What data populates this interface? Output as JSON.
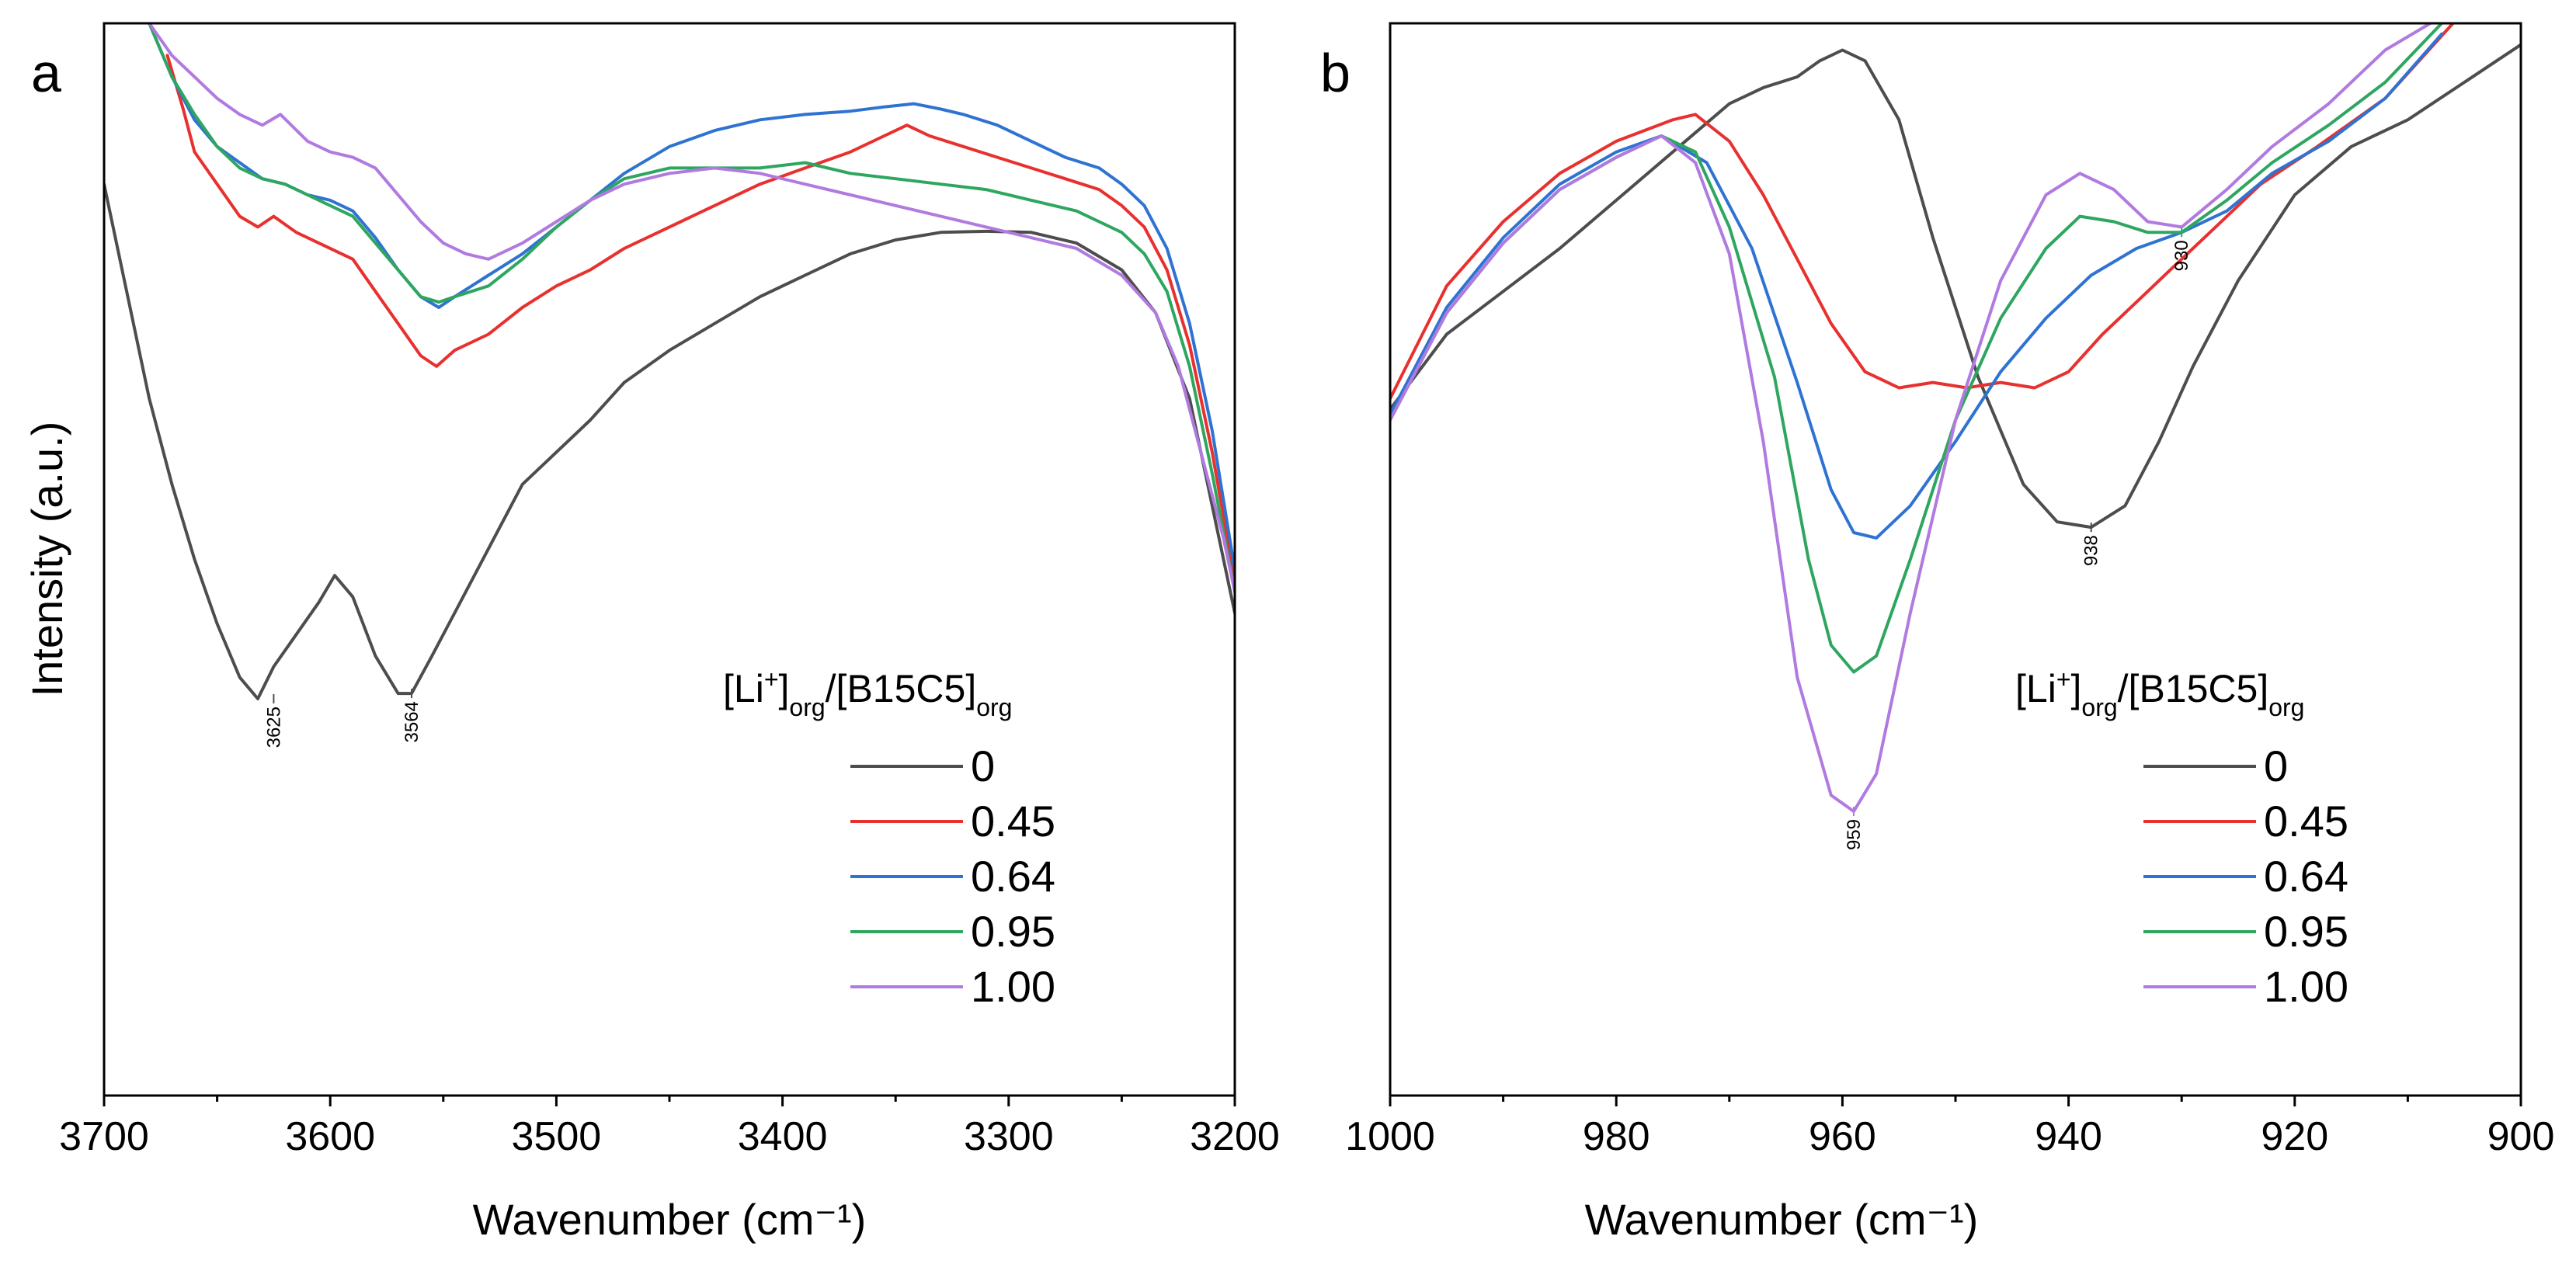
{
  "chart_data": [
    {
      "panel": "a",
      "type": "line",
      "xlabel": "Wavenumber (cm⁻¹)",
      "ylabel": "Intensity (a.u.)",
      "xlim": [
        3700,
        3200
      ],
      "ylim": [
        0,
        100
      ],
      "xticks": [
        "3700",
        "3600",
        "3500",
        "3400",
        "3300",
        "3200"
      ],
      "legend": {
        "title_parts": [
          "[Li",
          "+",
          "]",
          "org",
          "/[B15C5]",
          "org"
        ],
        "position": "lower-right"
      },
      "series": [
        {
          "name": "0",
          "color": "#4d4d4d",
          "x": [
            3700,
            3690,
            3680,
            3670,
            3660,
            3650,
            3640,
            3632,
            3625,
            3615,
            3605,
            3598,
            3590,
            3580,
            3570,
            3564,
            3555,
            3545,
            3530,
            3515,
            3500,
            3485,
            3470,
            3450,
            3430,
            3410,
            3390,
            3370,
            3350,
            3330,
            3310,
            3290,
            3270,
            3250,
            3235,
            3220,
            3210,
            3200
          ],
          "y": [
            85,
            75,
            65,
            57,
            50,
            44,
            39,
            37,
            40,
            43,
            46,
            48.5,
            46.5,
            41,
            37.5,
            37.5,
            41,
            45,
            51,
            57,
            60,
            63,
            66.5,
            69.5,
            72,
            74.5,
            76.5,
            78.5,
            79.8,
            80.5,
            80.6,
            80.5,
            79.5,
            77,
            73,
            65,
            55,
            45
          ]
        },
        {
          "name": "0.45",
          "color": "#e8312f",
          "x": [
            3672,
            3665,
            3660,
            3650,
            3640,
            3632,
            3625,
            3615,
            3605,
            3590,
            3580,
            3570,
            3560,
            3553,
            3545,
            3530,
            3515,
            3500,
            3485,
            3470,
            3450,
            3430,
            3410,
            3390,
            3370,
            3355,
            3345,
            3335,
            3320,
            3305,
            3290,
            3275,
            3260,
            3250,
            3240,
            3230,
            3220,
            3210,
            3200
          ],
          "y": [
            97,
            92,
            88,
            85,
            82,
            81,
            82,
            80.5,
            79.5,
            78,
            75,
            72,
            69,
            68,
            69.5,
            71,
            73.5,
            75.5,
            77,
            79,
            81,
            83,
            85,
            86.5,
            88,
            89.5,
            90.5,
            89.5,
            88.5,
            87.5,
            86.5,
            85.5,
            84.5,
            83,
            81,
            77,
            70,
            60,
            48
          ]
        },
        {
          "name": "0.64",
          "color": "#2f73d2",
          "x": [
            3680,
            3670,
            3660,
            3650,
            3640,
            3630,
            3620,
            3610,
            3600,
            3590,
            3580,
            3570,
            3560,
            3552,
            3545,
            3530,
            3515,
            3500,
            3485,
            3470,
            3450,
            3430,
            3410,
            3390,
            3370,
            3355,
            3342,
            3330,
            3320,
            3305,
            3290,
            3275,
            3260,
            3250,
            3240,
            3230,
            3220,
            3210,
            3200
          ],
          "y": [
            100,
            95,
            91,
            88.5,
            87,
            85.5,
            85,
            84,
            83.5,
            82.5,
            80,
            77,
            74.5,
            73.5,
            74.5,
            76.5,
            78.5,
            81,
            83.5,
            86,
            88.5,
            90,
            91,
            91.5,
            91.8,
            92.2,
            92.5,
            92,
            91.5,
            90.5,
            89,
            87.5,
            86.5,
            85,
            83,
            79,
            72,
            62,
            49
          ]
        },
        {
          "name": "0.95",
          "color": "#2fa660",
          "x": [
            3680,
            3670,
            3660,
            3650,
            3640,
            3630,
            3620,
            3610,
            3600,
            3590,
            3580,
            3570,
            3560,
            3552,
            3545,
            3530,
            3515,
            3500,
            3485,
            3470,
            3450,
            3430,
            3410,
            3390,
            3370,
            3350,
            3330,
            3310,
            3290,
            3270,
            3250,
            3240,
            3230,
            3220,
            3210,
            3200
          ],
          "y": [
            100,
            95,
            91.5,
            88.5,
            86.5,
            85.5,
            85,
            84,
            83,
            82,
            79.5,
            77,
            74.5,
            74,
            74.5,
            75.5,
            78,
            81,
            83.5,
            85.5,
            86.5,
            86.5,
            86.5,
            87,
            86,
            85.5,
            85,
            84.5,
            83.5,
            82.5,
            80.5,
            78.5,
            75,
            68,
            58,
            47
          ]
        },
        {
          "name": "1.00",
          "color": "#b07ae0",
          "x": [
            3680,
            3670,
            3660,
            3650,
            3640,
            3630,
            3622,
            3610,
            3600,
            3590,
            3580,
            3570,
            3560,
            3550,
            3540,
            3530,
            3515,
            3500,
            3485,
            3470,
            3450,
            3430,
            3410,
            3390,
            3370,
            3350,
            3330,
            3310,
            3290,
            3270,
            3250,
            3235,
            3225,
            3215,
            3205,
            3200
          ],
          "y": [
            100,
            97,
            95,
            93,
            91.5,
            90.5,
            91.5,
            89,
            88,
            87.5,
            86.5,
            84,
            81.5,
            79.5,
            78.5,
            78,
            79.5,
            81.5,
            83.5,
            85,
            86,
            86.5,
            86,
            85,
            84,
            83,
            82,
            81,
            80,
            79,
            76.5,
            73,
            68,
            60,
            52,
            47
          ]
        }
      ],
      "peak_labels": [
        {
          "label": "3625",
          "x": 3625,
          "y": 37
        },
        {
          "label": "3564",
          "x": 3564,
          "y": 37.5
        }
      ]
    },
    {
      "panel": "b",
      "type": "line",
      "xlabel": "Wavenumber (cm⁻¹)",
      "ylabel": "",
      "xlim": [
        1000,
        900
      ],
      "ylim": [
        0,
        100
      ],
      "xticks": [
        "1000",
        "980",
        "960",
        "940",
        "920",
        "900"
      ],
      "legend": {
        "title_parts": [
          "[Li",
          "+",
          "]",
          "org",
          "/[B15C5]",
          "org"
        ],
        "position": "lower-right"
      },
      "series": [
        {
          "name": "0",
          "color": "#4d4d4d",
          "x": [
            1000,
            995,
            990,
            985,
            980,
            975,
            970,
            967,
            964,
            962,
            960,
            958,
            955,
            952,
            948,
            944,
            941,
            938,
            935,
            932,
            929,
            925,
            920,
            915,
            910,
            905,
            900
          ],
          "y": [
            64,
            71,
            75,
            79,
            83.5,
            88,
            92.5,
            94,
            95,
            96.5,
            97.5,
            96.5,
            91,
            80,
            67,
            57,
            53.5,
            53,
            55,
            61,
            68,
            76,
            84,
            88.5,
            91,
            94.5,
            98
          ]
        },
        {
          "name": "0.45",
          "color": "#e8312f",
          "x": [
            1000,
            995,
            990,
            985,
            980,
            975,
            973,
            970,
            967,
            964,
            961,
            958,
            955,
            952,
            949,
            946,
            943,
            940,
            937,
            934,
            931,
            927,
            923,
            918,
            912,
            906
          ],
          "y": [
            65,
            75.5,
            81.5,
            86,
            89,
            91,
            91.5,
            89,
            84,
            78,
            72,
            67.5,
            66,
            66.5,
            66,
            66.5,
            66,
            67.5,
            71,
            74,
            77,
            81,
            85,
            88.5,
            93,
            100
          ]
        },
        {
          "name": "0.64",
          "color": "#2f73d2",
          "x": [
            1000,
            995,
            990,
            985,
            980,
            976,
            972,
            968,
            964,
            961,
            959,
            957,
            954,
            950,
            946,
            942,
            938,
            934,
            930,
            926,
            922,
            917,
            912,
            907
          ],
          "y": [
            63.5,
            73.5,
            80,
            85,
            88,
            89.5,
            87,
            79,
            66.5,
            56.5,
            52.5,
            52,
            55,
            61,
            67.5,
            72.5,
            76.5,
            79,
            80.5,
            82.5,
            86,
            89,
            93,
            99
          ]
        },
        {
          "name": "0.95",
          "color": "#2fa660",
          "x": [
            1000,
            995,
            990,
            985,
            980,
            976,
            973,
            970,
            966,
            963,
            961,
            959,
            957,
            954,
            950,
            946,
            942,
            939,
            936,
            933,
            930,
            926,
            922,
            917,
            912,
            907
          ],
          "y": [
            63,
            73,
            79.5,
            84.5,
            87.5,
            89.5,
            88,
            81,
            67,
            50,
            42,
            39.5,
            41,
            50,
            63,
            72.5,
            79,
            82,
            81.5,
            80.5,
            80.5,
            83.5,
            87,
            90.5,
            94.5,
            100
          ]
        },
        {
          "name": "1.00",
          "color": "#b07ae0",
          "x": [
            1000,
            995,
            990,
            985,
            980,
            976,
            973,
            970,
            967,
            964,
            961,
            959,
            957,
            954,
            950,
            946,
            942,
            939,
            936,
            933,
            930,
            926,
            922,
            917,
            912,
            908
          ],
          "y": [
            63,
            73,
            79.5,
            84.5,
            87.5,
            89.5,
            87,
            78.5,
            61,
            39,
            28,
            26.5,
            30,
            45,
            63,
            76,
            84,
            86,
            84.5,
            81.5,
            81,
            84.5,
            88.5,
            92.5,
            97.5,
            100
          ]
        }
      ],
      "peak_labels": [
        {
          "label": "959",
          "x": 959,
          "y": 26.5
        },
        {
          "label": "938",
          "x": 938,
          "y": 53
        },
        {
          "label": "930",
          "x": 930,
          "y": 80.5
        }
      ]
    }
  ]
}
